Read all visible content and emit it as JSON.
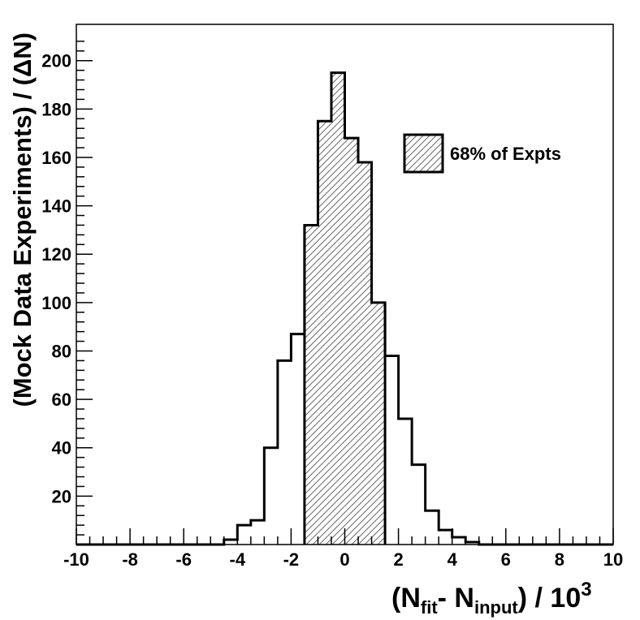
{
  "chart_data": {
    "type": "bar",
    "xlabel": {
      "main_left": "(N",
      "sub1": "fit",
      "mid": "- N",
      "sub2": "input",
      "main_right": ") / 10",
      "sup": "3"
    },
    "ylabel": "(Mock Data Experiments) / (ΔN)",
    "xlim": [
      -10,
      10
    ],
    "ylim": [
      0,
      215
    ],
    "x_ticks": [
      "-10",
      "-8",
      "-6",
      "-4",
      "-2",
      "0",
      "2",
      "4",
      "6",
      "8",
      "10"
    ],
    "y_ticks": [
      "20",
      "40",
      "60",
      "80",
      "100",
      "120",
      "140",
      "160",
      "180",
      "200"
    ],
    "bin_width": 0.5,
    "bins": [
      {
        "x0": -4.5,
        "value": 2
      },
      {
        "x0": -4.0,
        "value": 8
      },
      {
        "x0": -3.5,
        "value": 10
      },
      {
        "x0": -3.0,
        "value": 40
      },
      {
        "x0": -2.5,
        "value": 76
      },
      {
        "x0": -2.0,
        "value": 87
      },
      {
        "x0": -1.5,
        "value": 132
      },
      {
        "x0": -1.0,
        "value": 175
      },
      {
        "x0": -0.5,
        "value": 195
      },
      {
        "x0": 0.0,
        "value": 168
      },
      {
        "x0": 0.5,
        "value": 158
      },
      {
        "x0": 1.0,
        "value": 100
      },
      {
        "x0": 1.5,
        "value": 78
      },
      {
        "x0": 2.0,
        "value": 52
      },
      {
        "x0": 2.5,
        "value": 33
      },
      {
        "x0": 3.0,
        "value": 14
      },
      {
        "x0": 3.5,
        "value": 6
      },
      {
        "x0": 4.0,
        "value": 3
      },
      {
        "x0": 4.5,
        "value": 1
      }
    ],
    "shaded_range": [
      -1.5,
      1.5
    ],
    "legend": {
      "label": "68% of Expts",
      "placement": "top-right"
    },
    "grid": false
  }
}
